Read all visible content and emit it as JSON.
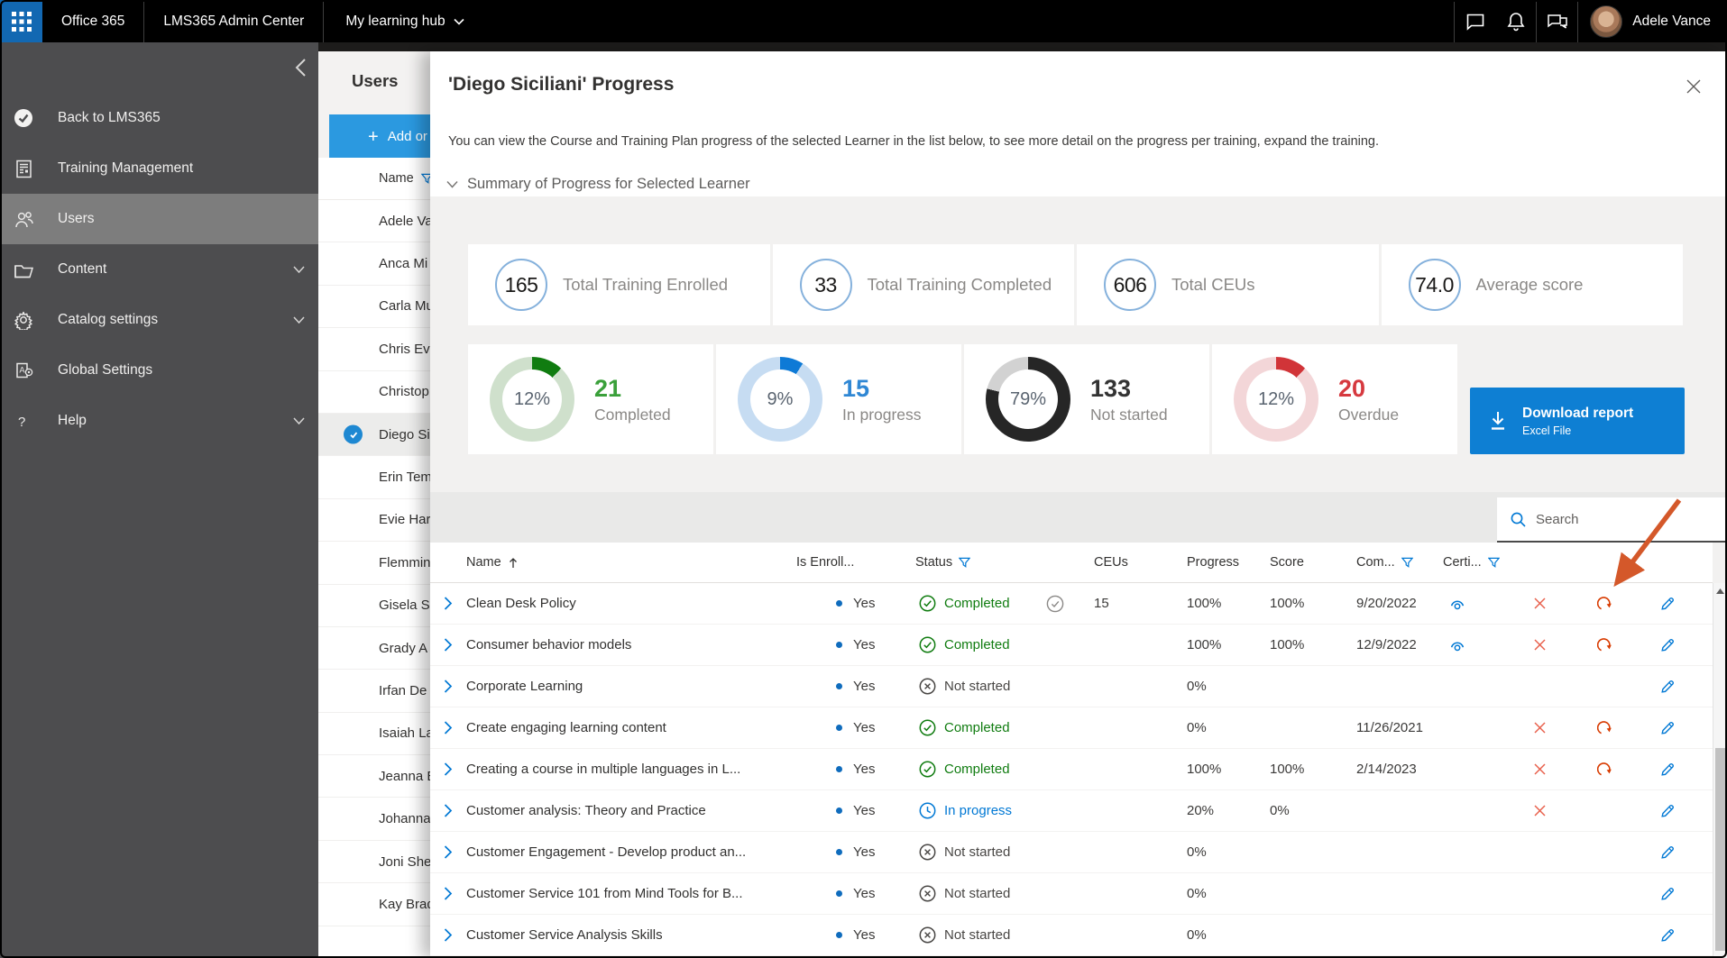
{
  "topbar": {
    "brand": "Office 365",
    "app_title": "LMS365 Admin Center",
    "hub_label": "My learning hub",
    "user_name": "Adele Vance",
    "icons": [
      "chat-icon",
      "bell-icon",
      "feedback-icon"
    ]
  },
  "sidebar": {
    "items": [
      {
        "label": "Back to LMS365",
        "icon": "lms-logo-icon",
        "chevron": false,
        "selected": false
      },
      {
        "label": "Training Management",
        "icon": "training-icon",
        "chevron": false,
        "selected": false
      },
      {
        "label": "Users",
        "icon": "users-icon",
        "chevron": false,
        "selected": true
      },
      {
        "label": "Content",
        "icon": "folder-icon",
        "chevron": true,
        "selected": false
      },
      {
        "label": "Catalog settings",
        "icon": "gear-icon",
        "chevron": true,
        "selected": false
      },
      {
        "label": "Global Settings",
        "icon": "global-settings-icon",
        "chevron": false,
        "selected": false
      },
      {
        "label": "Help",
        "icon": "help-icon",
        "chevron": true,
        "selected": false
      }
    ]
  },
  "users_panel": {
    "title": "Users",
    "add_button_label": "Add or im",
    "name_column": "Name",
    "selected_user": "Diego Si",
    "users": [
      "Adele Va",
      "Anca Mi",
      "Carla Mu",
      "Chris Eva",
      "Christop",
      "Diego Si",
      "Erin Tem",
      "Evie Har",
      "Flemmin",
      "Gisela Sl",
      "Grady A",
      "Irfan De",
      "Isaiah La",
      "Jeanna E",
      "Johanna",
      "Joni She",
      "Kay Brad"
    ]
  },
  "dialog": {
    "title": "'Diego Siciliani' Progress",
    "description": "You can view the Course and Training Plan progress of the selected Learner in the list below, to see more detail on the progress per training, expand the training.",
    "summary_label": "Summary of Progress for Selected Learner",
    "stat_cards": [
      {
        "value": "165",
        "label": "Total Training Enrolled"
      },
      {
        "value": "33",
        "label": "Total Training Completed"
      },
      {
        "value": "606",
        "label": "Total CEUs"
      },
      {
        "value": "74.0",
        "label": "Average score"
      }
    ],
    "donut_cards": [
      {
        "pct": 12,
        "pct_label": "12%",
        "value": "21",
        "label": "Completed",
        "arc_color": "#107c10",
        "track_color": "#cfe0cc",
        "value_color": "#3aa03a"
      },
      {
        "pct": 9,
        "pct_label": "9%",
        "value": "15",
        "label": "In progress",
        "arc_color": "#0e7ad6",
        "track_color": "#c6dcf2",
        "value_color": "#2f87d4"
      },
      {
        "pct": 79,
        "pct_label": "79%",
        "value": "133",
        "label": "Not started",
        "arc_color": "#262626",
        "track_color": "#d2d2d2",
        "value_color": "#333333"
      },
      {
        "pct": 12,
        "pct_label": "12%",
        "value": "20",
        "label": "Overdue",
        "arc_color": "#d13438",
        "track_color": "#f3d6d8",
        "value_color": "#d6393f"
      }
    ],
    "download_button": {
      "title": "Download report",
      "subtitle": "Excel File"
    },
    "search_placeholder": "Search",
    "annotation_arrow_color": "#d4582a",
    "table": {
      "columns": {
        "name": "Name",
        "enrolled": "Is Enroll...",
        "status": "Status",
        "ceus": "CEUs",
        "progress": "Progress",
        "score": "Score",
        "completed": "Com...",
        "certificates": "Certi..."
      },
      "rows": [
        {
          "name": "Clean Desk Policy",
          "enrolled": "Yes",
          "status": "Completed",
          "status_type": "completed",
          "extra_check": true,
          "ceus": "15",
          "progress": "100%",
          "score": "100%",
          "completed": "9/20/2022",
          "cert": true,
          "actions": [
            "remove",
            "refresh",
            "edit"
          ]
        },
        {
          "name": "Consumer behavior models",
          "enrolled": "Yes",
          "status": "Completed",
          "status_type": "completed",
          "extra_check": false,
          "ceus": "",
          "progress": "100%",
          "score": "100%",
          "completed": "12/9/2022",
          "cert": true,
          "actions": [
            "remove",
            "refresh",
            "edit"
          ]
        },
        {
          "name": "Corporate Learning",
          "enrolled": "Yes",
          "status": "Not started",
          "status_type": "notstarted",
          "extra_check": false,
          "ceus": "",
          "progress": "0%",
          "score": "",
          "completed": "",
          "cert": false,
          "actions": [
            "edit"
          ]
        },
        {
          "name": "Create engaging learning content",
          "enrolled": "Yes",
          "status": "Completed",
          "status_type": "completed",
          "extra_check": false,
          "ceus": "",
          "progress": "0%",
          "score": "",
          "completed": "11/26/2021",
          "cert": false,
          "actions": [
            "remove",
            "refresh",
            "edit"
          ]
        },
        {
          "name": "Creating a course in multiple languages in L...",
          "enrolled": "Yes",
          "status": "Completed",
          "status_type": "completed",
          "extra_check": false,
          "ceus": "",
          "progress": "100%",
          "score": "100%",
          "completed": "2/14/2023",
          "cert": false,
          "actions": [
            "remove",
            "refresh",
            "edit"
          ]
        },
        {
          "name": "Customer analysis: Theory and Practice",
          "enrolled": "Yes",
          "status": "In progress",
          "status_type": "inprogress",
          "extra_check": false,
          "ceus": "",
          "progress": "20%",
          "score": "0%",
          "completed": "",
          "cert": false,
          "actions": [
            "remove",
            "edit"
          ]
        },
        {
          "name": "Customer Engagement - Develop product an...",
          "enrolled": "Yes",
          "status": "Not started",
          "status_type": "notstarted",
          "extra_check": false,
          "ceus": "",
          "progress": "0%",
          "score": "",
          "completed": "",
          "cert": false,
          "actions": [
            "edit"
          ]
        },
        {
          "name": "Customer Service 101 from Mind Tools for B...",
          "enrolled": "Yes",
          "status": "Not started",
          "status_type": "notstarted",
          "extra_check": false,
          "ceus": "",
          "progress": "0%",
          "score": "",
          "completed": "",
          "cert": false,
          "actions": [
            "edit"
          ]
        },
        {
          "name": "Customer Service Analysis Skills",
          "enrolled": "Yes",
          "status": "Not started",
          "status_type": "notstarted",
          "extra_check": false,
          "ceus": "",
          "progress": "0%",
          "score": "",
          "completed": "",
          "cert": false,
          "actions": [
            "edit"
          ]
        }
      ]
    }
  },
  "colors": {
    "accent_blue": "#0078d4",
    "topbar_bg": "#000000",
    "waffle_bg": "#1268b2",
    "sidebar_bg": "#4d4d4f",
    "sidebar_selected": "#7d7d7d",
    "add_button": "#2b99e0",
    "download_button": "#0e7fd3",
    "status_green": "#107c10",
    "status_blue": "#0078d4",
    "remove_red": "#e8604c",
    "refresh_orange": "#d83b01"
  }
}
